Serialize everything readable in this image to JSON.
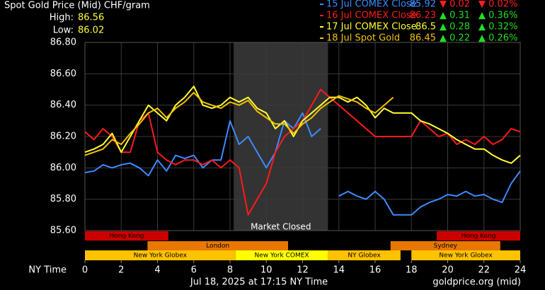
{
  "chart_data": {
    "type": "line",
    "title": "Spot Gold Price (Mid) CHF/gram",
    "high_label": "High:",
    "high": 86.56,
    "low_label": "Low:",
    "low": 86.02,
    "x_label": "NY Time",
    "timestamp": "Jul 18, 2025 at 17:15 NY Time",
    "source": "goldprice.org (mid)",
    "xlim": [
      0,
      24
    ],
    "xticks": [
      0,
      2,
      4,
      6,
      8,
      10,
      12,
      14,
      16,
      18,
      20,
      22,
      24
    ],
    "ylim": [
      85.6,
      86.8
    ],
    "yticks": [
      {
        "value": 85.6,
        "label": "85.60"
      },
      {
        "value": 85.8,
        "label": "85.80"
      },
      {
        "value": 86.0,
        "label": "86.00"
      },
      {
        "value": 86.2,
        "label": "86.20"
      },
      {
        "value": 86.4,
        "label": "86.40"
      },
      {
        "value": 86.6,
        "label": "86.60"
      },
      {
        "value": 86.8,
        "label": "86.80"
      }
    ],
    "grid": true,
    "x": [
      0,
      0.5,
      1,
      1.5,
      2,
      2.5,
      3,
      3.5,
      4,
      4.5,
      5,
      5.5,
      6,
      6.5,
      7,
      7.5,
      8,
      8.5,
      9,
      9.5,
      10,
      10.5,
      11,
      11.5,
      12,
      12.5,
      13,
      13.5,
      14,
      14.5,
      15,
      15.5,
      16,
      16.5,
      17,
      17.5,
      18,
      18.5,
      19,
      19.5,
      20,
      20.5,
      21,
      21.5,
      22,
      22.5,
      23,
      23.5,
      24
    ],
    "series": [
      {
        "name": "15 Jul COMEX Close",
        "color": "#3d8bff",
        "close": 85.92,
        "change": -0.02,
        "change_label": "▼ 0.02",
        "change_pct": -0.02,
        "change_pct_label": "▼ 0.02%",
        "values": [
          85.97,
          85.98,
          86.02,
          86.0,
          86.02,
          86.03,
          86.0,
          85.95,
          86.05,
          85.98,
          86.08,
          86.06,
          86.08,
          86.0,
          86.05,
          86.05,
          86.3,
          86.15,
          86.2,
          86.1,
          86.0,
          86.1,
          86.3,
          86.25,
          86.35,
          86.2,
          86.25,
          null,
          85.82,
          85.85,
          85.82,
          85.8,
          85.85,
          85.8,
          85.7,
          85.7,
          85.7,
          85.75,
          85.78,
          85.8,
          85.83,
          85.82,
          85.85,
          85.82,
          85.83,
          85.8,
          85.78,
          85.9,
          85.98
        ]
      },
      {
        "name": "16 Jul COMEX Close",
        "color": "#ff1a1a",
        "close": 86.23,
        "change": 0.31,
        "change_label": "▲ 0.31",
        "change_pct": 0.36,
        "change_pct_label": "▲ 0.36%",
        "values": [
          86.23,
          86.18,
          86.25,
          86.2,
          86.1,
          86.1,
          86.3,
          86.35,
          86.1,
          86.05,
          86.02,
          86.05,
          86.05,
          86.02,
          86.05,
          86.0,
          86.05,
          86.0,
          85.7,
          85.8,
          85.9,
          86.1,
          86.2,
          86.25,
          86.3,
          86.4,
          86.5,
          86.45,
          86.4,
          86.35,
          86.3,
          86.25,
          86.2,
          86.2,
          86.2,
          86.2,
          86.2,
          86.3,
          86.25,
          86.2,
          86.22,
          86.15,
          86.18,
          86.15,
          86.2,
          86.15,
          86.18,
          86.25,
          86.23
        ]
      },
      {
        "name": "17 Jul COMEX Close",
        "color": "#ffff33",
        "close": 86.5,
        "change": 0.28,
        "change_label": "▲ 0.28",
        "change_pct": 0.32,
        "change_pct_label": "▲ 0.32%",
        "values": [
          86.1,
          86.12,
          86.15,
          86.22,
          86.1,
          86.2,
          86.3,
          86.4,
          86.35,
          86.3,
          86.4,
          86.45,
          86.52,
          86.4,
          86.38,
          86.4,
          86.45,
          86.42,
          86.45,
          86.38,
          86.35,
          86.25,
          86.3,
          86.2,
          86.3,
          86.35,
          86.4,
          86.45,
          86.45,
          86.42,
          86.45,
          86.4,
          86.32,
          86.38,
          86.35,
          86.35,
          86.35,
          86.3,
          86.28,
          86.25,
          86.22,
          86.18,
          86.15,
          86.12,
          86.12,
          86.08,
          86.05,
          86.03,
          86.08
        ]
      },
      {
        "name": "18 Jul Spot Gold",
        "color": "#f2c200",
        "close": 86.45,
        "change": 0.22,
        "change_label": "▲ 0.22",
        "change_pct": 0.26,
        "change_pct_label": "▲ 0.26%",
        "values": [
          86.08,
          86.1,
          86.12,
          86.18,
          86.15,
          86.22,
          86.28,
          86.35,
          86.38,
          86.32,
          86.38,
          86.42,
          86.48,
          86.42,
          86.4,
          86.38,
          86.42,
          86.4,
          86.43,
          86.36,
          86.32,
          86.28,
          86.28,
          86.22,
          86.28,
          86.32,
          86.38,
          86.42,
          86.46,
          86.44,
          86.42,
          86.38,
          86.35,
          86.4,
          86.45,
          null,
          null,
          null,
          null,
          null,
          null,
          null,
          null,
          null,
          null,
          null,
          null,
          null,
          null
        ]
      }
    ],
    "closed_period": {
      "label": "Market Closed",
      "start": 8.2,
      "end": 13.4
    },
    "sessions": [
      {
        "label": "Hong Kong",
        "start": 0,
        "end": 4.6,
        "row": 0,
        "color": "#cc0000"
      },
      {
        "label": "Hong Kong",
        "start": 19.4,
        "end": 24,
        "row": 0,
        "color": "#cc0000"
      },
      {
        "label": "London",
        "start": 3.45,
        "end": 11.2,
        "row": 1,
        "color": "#e87800"
      },
      {
        "label": "Sydney",
        "start": 16.85,
        "end": 22.9,
        "row": 1,
        "color": "#e87800"
      },
      {
        "label": "New York Globex",
        "start": 0,
        "end": 8.3,
        "row": 2,
        "color": "#ffc200"
      },
      {
        "label": "New York COMEX",
        "start": 8.3,
        "end": 13.4,
        "row": 2,
        "color": "#ffff00"
      },
      {
        "label": "NY Globex",
        "start": 13.4,
        "end": 17.4,
        "row": 2,
        "color": "#ffc200"
      },
      {
        "label": "New York Globex",
        "start": 18,
        "end": 24,
        "row": 2,
        "color": "#ffc200"
      }
    ]
  }
}
